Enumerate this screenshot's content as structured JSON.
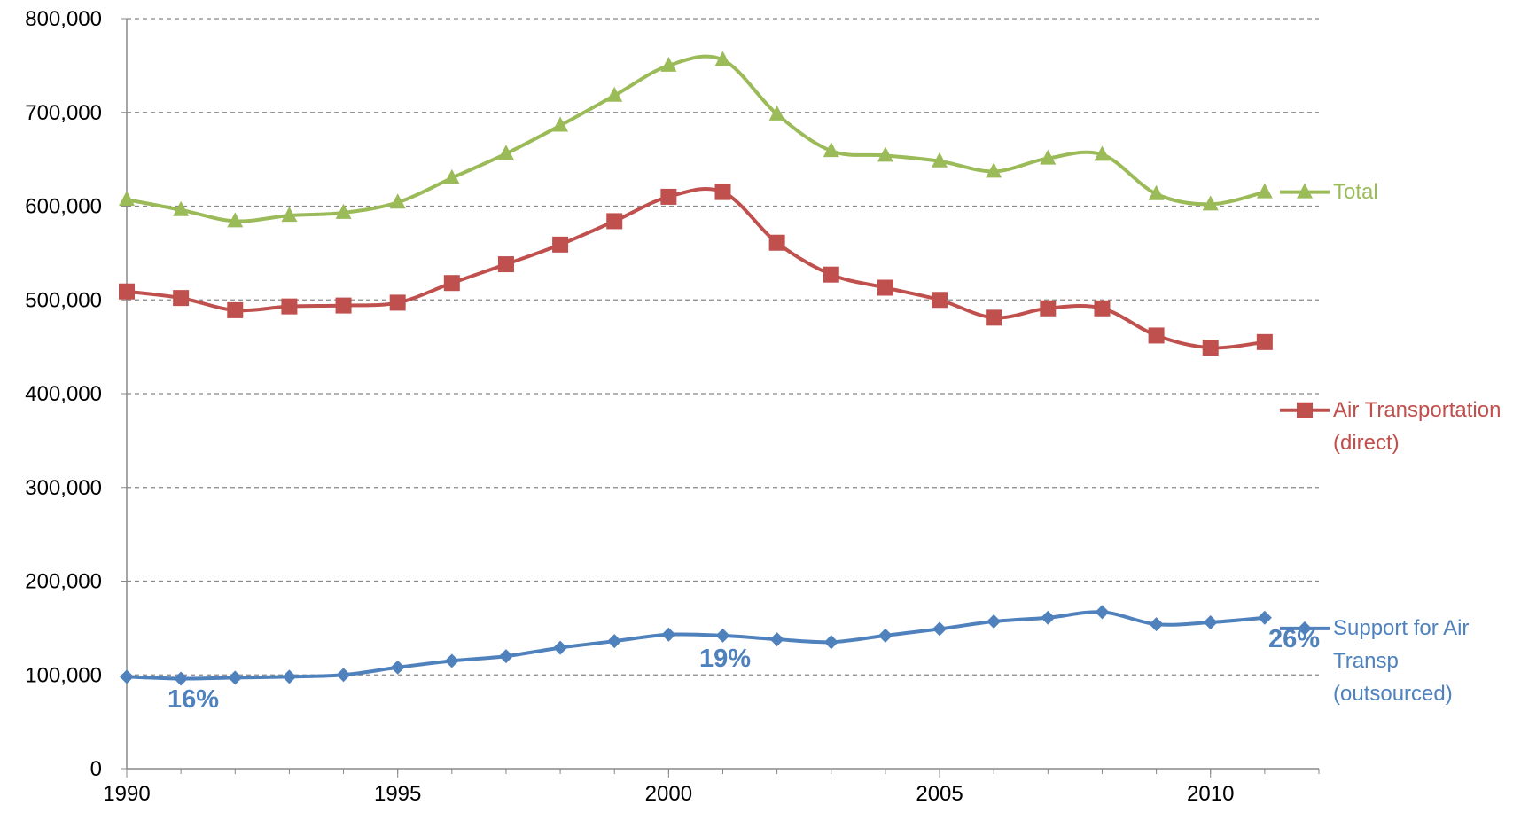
{
  "chart_data": {
    "type": "line",
    "x": [
      1990,
      1991,
      1992,
      1993,
      1994,
      1995,
      1996,
      1997,
      1998,
      1999,
      2000,
      2001,
      2002,
      2003,
      2004,
      2005,
      2006,
      2007,
      2008,
      2009,
      2010,
      2011
    ],
    "series": [
      {
        "name": "Total",
        "color": "#9bbb59",
        "marker": "triangle",
        "values": [
          607000,
          596000,
          584000,
          590000,
          593000,
          604000,
          630000,
          656000,
          686000,
          718000,
          750000,
          756000,
          698000,
          659000,
          654000,
          648000,
          637000,
          651000,
          655000,
          613000,
          602000,
          615000
        ]
      },
      {
        "name": "Air Transportation (direct)",
        "color": "#c0504d",
        "marker": "square",
        "values": [
          509000,
          502000,
          489000,
          493000,
          494000,
          497000,
          518000,
          538000,
          559000,
          584000,
          610000,
          615000,
          561000,
          527000,
          513000,
          500000,
          481000,
          491000,
          491000,
          462000,
          449000,
          455000
        ]
      },
      {
        "name": "Support for Air Transp (outsourced)",
        "color": "#4f81bd",
        "marker": "diamond",
        "values": [
          98000,
          96000,
          97000,
          98000,
          100000,
          108000,
          115000,
          120000,
          129000,
          136000,
          143000,
          142000,
          138000,
          135000,
          142000,
          149000,
          157000,
          161000,
          167000,
          154000,
          156000,
          161000
        ]
      }
    ],
    "annotations": [
      "16%",
      "19%",
      "26%"
    ],
    "xlim": [
      1990,
      2012
    ],
    "xticks": [
      1990,
      1995,
      2000,
      2005,
      2010
    ],
    "ylim": [
      0,
      800000
    ],
    "yticks": [
      0,
      {
        "value": 100000,
        "label": "100,000"
      },
      {
        "value": 200000,
        "label": "200,000"
      },
      {
        "value": 300000,
        "label": "300,000"
      },
      {
        "value": 400000,
        "label": "400,000"
      },
      {
        "value": 500000,
        "label": "500,000"
      },
      {
        "value": 600000,
        "label": "600,000"
      },
      {
        "value": 700000,
        "label": "700,000"
      },
      {
        "value": 800000,
        "label": "800,000"
      }
    ],
    "grid": true,
    "legend": "right"
  }
}
